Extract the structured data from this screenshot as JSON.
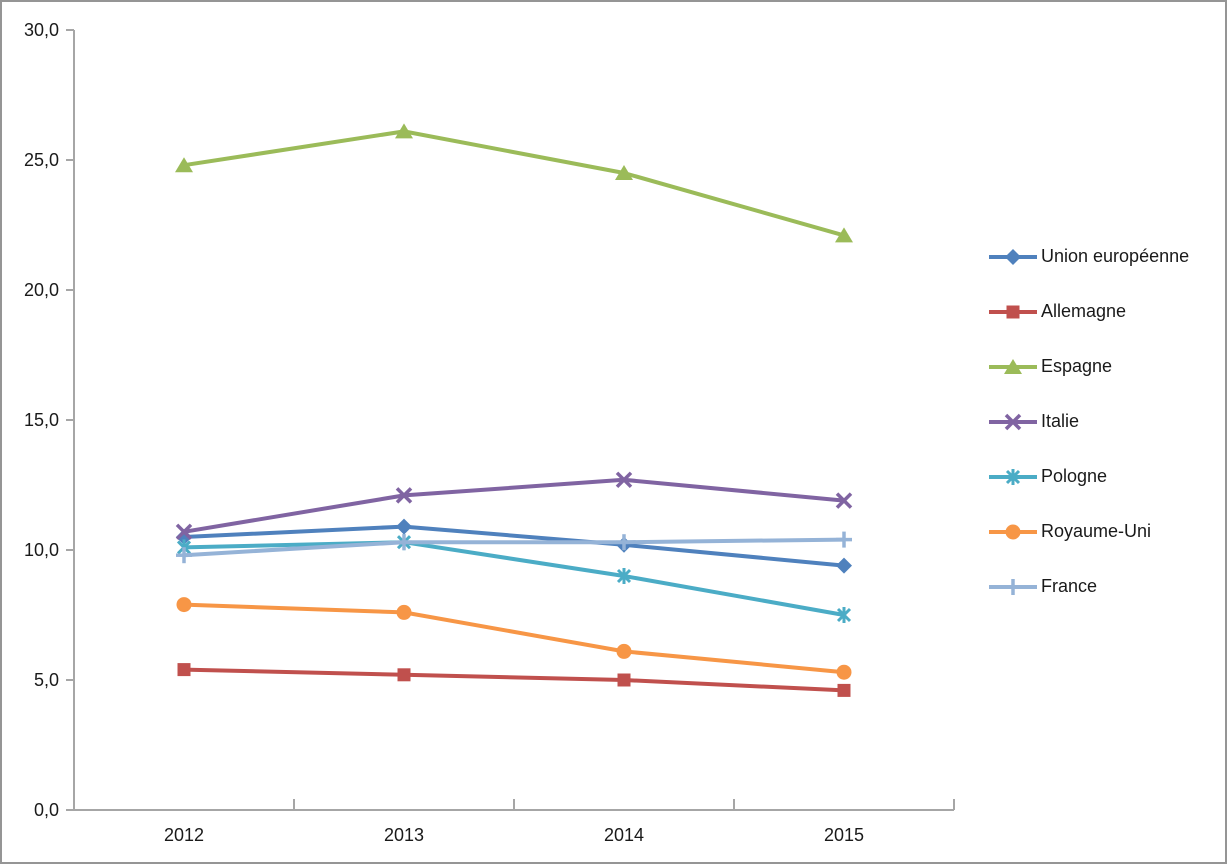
{
  "chart_data": {
    "type": "line",
    "title": "",
    "xlabel": "",
    "ylabel": "",
    "x_categories": [
      "2012",
      "2013",
      "2014",
      "2015"
    ],
    "y_axis": {
      "min": 0,
      "max": 30,
      "step": 5,
      "tick_labels": [
        "0,0",
        "5,0",
        "10,0",
        "15,0",
        "20,0",
        "25,0",
        "30,0"
      ]
    },
    "grid": false,
    "legend_position": "right",
    "series": [
      {
        "name": "Union européenne",
        "color": "#4F81BD",
        "marker": "diamond",
        "values": [
          10.5,
          10.9,
          10.2,
          9.4
        ]
      },
      {
        "name": "Allemagne",
        "color": "#C0504D",
        "marker": "square",
        "values": [
          5.4,
          5.2,
          5.0,
          4.6
        ]
      },
      {
        "name": "Espagne",
        "color": "#9BBB59",
        "marker": "triangle",
        "values": [
          24.8,
          26.1,
          24.5,
          22.1
        ]
      },
      {
        "name": "Italie",
        "color": "#8064A2",
        "marker": "x",
        "values": [
          10.7,
          12.1,
          12.7,
          11.9
        ]
      },
      {
        "name": "Pologne",
        "color": "#4BACC6",
        "marker": "asterisk",
        "values": [
          10.1,
          10.3,
          9.0,
          7.5
        ]
      },
      {
        "name": "Royaume-Uni",
        "color": "#F79646",
        "marker": "circle",
        "values": [
          7.9,
          7.6,
          6.1,
          5.3
        ]
      },
      {
        "name": "France",
        "color": "#95B3D7",
        "marker": "plus",
        "values": [
          9.8,
          10.3,
          10.3,
          10.4
        ]
      }
    ],
    "style": {
      "axis_color": "#A6A6A6",
      "text_color": "#1a1a1a",
      "background": "#FFFFFF",
      "frame_border_color": "#959595"
    }
  }
}
